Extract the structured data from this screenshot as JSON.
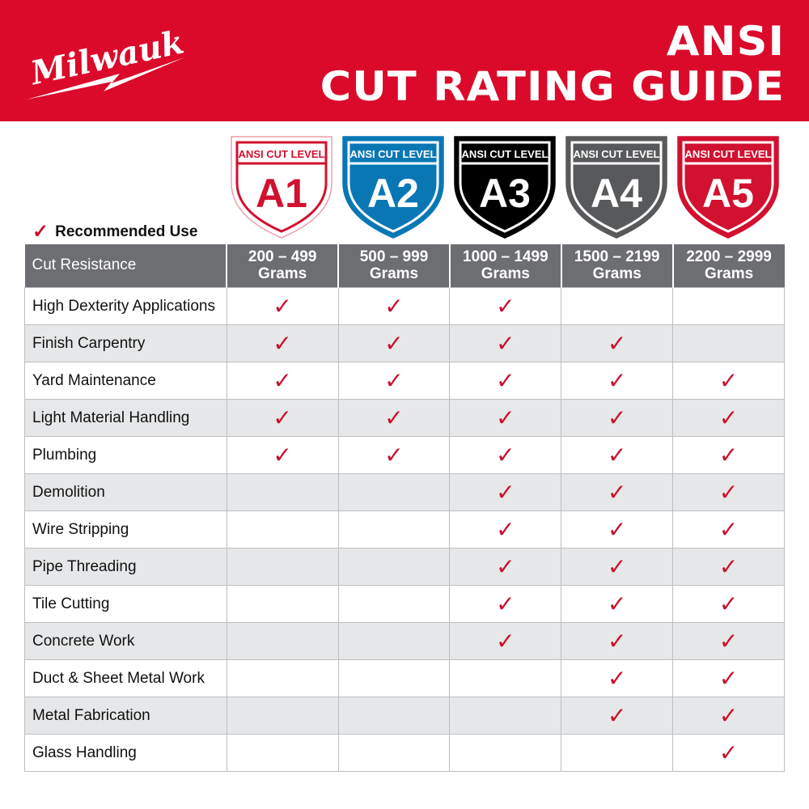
{
  "brand": {
    "logo_text": "Milwaukee",
    "color": "#db0a2b"
  },
  "title": {
    "line1": "ANSI",
    "line2": "CUT RATING GUIDE"
  },
  "legend": {
    "icon": "check-icon",
    "label": "Recommended Use"
  },
  "levels": [
    {
      "caption": "ANSI CUT LEVEL",
      "code": "A1",
      "range": "200 – 499",
      "unit": "Grams",
      "color": "#d2102f",
      "style": "outline"
    },
    {
      "caption": "ANSI CUT LEVEL",
      "code": "A2",
      "range": "500 – 999",
      "unit": "Grams",
      "color": "#0a77b5",
      "style": "filled"
    },
    {
      "caption": "ANSI CUT LEVEL",
      "code": "A3",
      "range": "1000 – 1499",
      "unit": "Grams",
      "color": "#000000",
      "style": "filled"
    },
    {
      "caption": "ANSI CUT LEVEL",
      "code": "A4",
      "range": "1500 – 2199",
      "unit": "Grams",
      "color": "#58595b",
      "style": "filled"
    },
    {
      "caption": "ANSI CUT LEVEL",
      "code": "A5",
      "range": "2200 – 2999",
      "unit": "Grams",
      "color": "#d2102f",
      "style": "filled"
    }
  ],
  "table": {
    "header": "Cut Resistance",
    "rows": [
      {
        "name": "High Dexterity Applications",
        "checks": [
          true,
          true,
          true,
          false,
          false
        ]
      },
      {
        "name": "Finish Carpentry",
        "checks": [
          true,
          true,
          true,
          true,
          false
        ]
      },
      {
        "name": "Yard Maintenance",
        "checks": [
          true,
          true,
          true,
          true,
          true
        ]
      },
      {
        "name": "Light Material Handling",
        "checks": [
          true,
          true,
          true,
          true,
          true
        ]
      },
      {
        "name": "Plumbing",
        "checks": [
          true,
          true,
          true,
          true,
          true
        ]
      },
      {
        "name": "Demolition",
        "checks": [
          false,
          false,
          true,
          true,
          true
        ]
      },
      {
        "name": "Wire Stripping",
        "checks": [
          false,
          false,
          true,
          true,
          true
        ]
      },
      {
        "name": "Pipe Threading",
        "checks": [
          false,
          false,
          true,
          true,
          true
        ]
      },
      {
        "name": "Tile Cutting",
        "checks": [
          false,
          false,
          true,
          true,
          true
        ]
      },
      {
        "name": "Concrete Work",
        "checks": [
          false,
          false,
          true,
          true,
          true
        ]
      },
      {
        "name": "Duct & Sheet Metal Work",
        "checks": [
          false,
          false,
          false,
          true,
          true
        ]
      },
      {
        "name": "Metal Fabrication",
        "checks": [
          false,
          false,
          false,
          true,
          true
        ]
      },
      {
        "name": "Glass Handling",
        "checks": [
          false,
          false,
          false,
          false,
          true
        ]
      }
    ]
  }
}
